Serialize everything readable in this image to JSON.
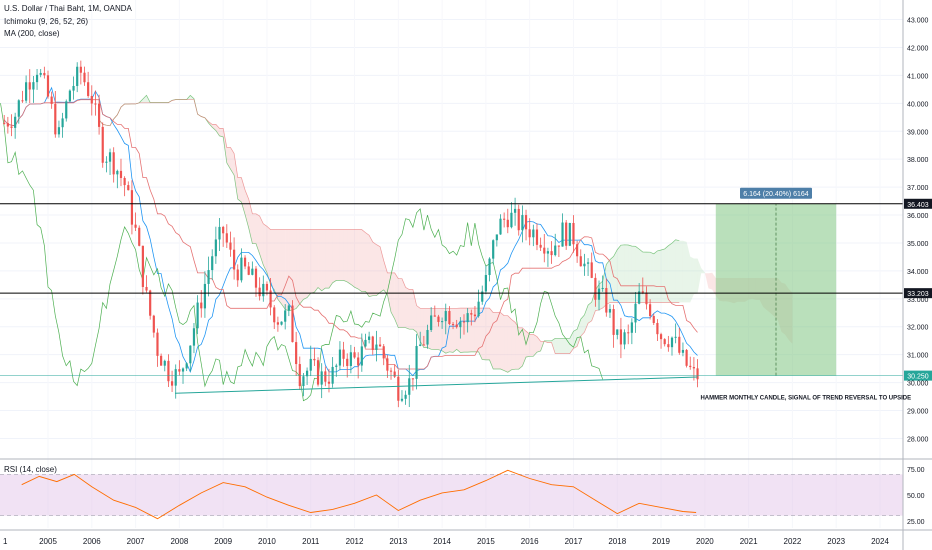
{
  "legend": {
    "title": "U.S. Dollar / Thai Baht, 1M, OANDA",
    "indicator1": "Ichimoku (9, 26, 52, 26)",
    "indicator2": "MA (200, close)",
    "rsi": "RSI (14, close)"
  },
  "annotations": {
    "measure_label": "6.164 (20.40%) 6164",
    "note": "HAMMER MONTHLY CANDLE, SIGNAL OF TREND REVERSAL TO UPSIDE"
  },
  "colors": {
    "up": "#26a69a",
    "down": "#ef5350",
    "tenkan": "#2196f3",
    "kijun": "#e57373",
    "chikou": "#4caf50",
    "cloud_bull": "#a5d6a7",
    "cloud_bear": "#ef9a9a",
    "rsi_line": "#ff6d00",
    "rsi_band": "#e1bee7",
    "measure": "#81c784",
    "support": "#26a69a",
    "level_line": "#000000"
  },
  "chart_data": [
    {
      "type": "candlestick",
      "title": "U.S. Dollar / Thai Baht, 1M, OANDA",
      "x_ticks": [
        "2005",
        "2006",
        "2007",
        "2008",
        "2009",
        "2010",
        "2011",
        "2012",
        "2013",
        "2014",
        "2015",
        "2016",
        "2017",
        "2018",
        "2019",
        "2020",
        "2021",
        "2022",
        "2023",
        "2024"
      ],
      "x_first_label": "1",
      "y_ticks": [
        "43.000",
        "42.000",
        "41.000",
        "40.000",
        "39.000",
        "38.000",
        "37.000",
        "36.000",
        "35.000",
        "34.000",
        "33.000",
        "32.000",
        "31.000",
        "30.000",
        "29.000",
        "28.000"
      ],
      "ylim": [
        27.3,
        43.7
      ],
      "price_labels": [
        {
          "text": "36.403",
          "value": 36.403
        },
        {
          "text": "33.203",
          "value": 33.203
        },
        {
          "text": "30.250",
          "value": 30.25
        }
      ],
      "horizontal_levels": [
        36.403,
        33.203
      ],
      "support_line": {
        "from": [
          2007.9,
          29.62
        ],
        "to": [
          2019.83,
          30.2
        ]
      },
      "series_close": [
        [
          2004.0,
          39.3
        ],
        [
          2004.25,
          39.6
        ],
        [
          2004.5,
          40.7
        ],
        [
          2004.75,
          41.3
        ],
        [
          2005.0,
          40.2
        ],
        [
          2005.25,
          38.8
        ],
        [
          2005.5,
          40.5
        ],
        [
          2005.75,
          41.1
        ],
        [
          2006.0,
          40.2
        ],
        [
          2006.25,
          38.3
        ],
        [
          2006.5,
          37.9
        ],
        [
          2006.75,
          37.1
        ],
        [
          2007.0,
          35.4
        ],
        [
          2007.25,
          33.0
        ],
        [
          2007.5,
          31.2
        ],
        [
          2007.75,
          30.4
        ],
        [
          2008.0,
          30.2
        ],
        [
          2008.25,
          31.5
        ],
        [
          2008.5,
          33.0
        ],
        [
          2008.75,
          34.6
        ],
        [
          2009.0,
          35.4
        ],
        [
          2009.25,
          34.1
        ],
        [
          2009.5,
          34.0
        ],
        [
          2009.75,
          33.5
        ],
        [
          2010.0,
          33.0
        ],
        [
          2010.25,
          32.3
        ],
        [
          2010.5,
          32.4
        ],
        [
          2010.75,
          30.3
        ],
        [
          2011.0,
          30.5
        ],
        [
          2011.25,
          30.2
        ],
        [
          2011.5,
          30.3
        ],
        [
          2011.75,
          31.0
        ],
        [
          2012.0,
          30.8
        ],
        [
          2012.25,
          31.2
        ],
        [
          2012.5,
          31.5
        ],
        [
          2012.75,
          30.6
        ],
        [
          2013.0,
          29.8
        ],
        [
          2013.25,
          30.0
        ],
        [
          2013.5,
          31.3
        ],
        [
          2013.75,
          32.0
        ],
        [
          2014.0,
          32.6
        ],
        [
          2014.25,
          32.4
        ],
        [
          2014.5,
          32.2
        ],
        [
          2014.75,
          32.6
        ],
        [
          2015.0,
          33.6
        ],
        [
          2015.25,
          35.5
        ],
        [
          2015.5,
          36.0
        ],
        [
          2015.75,
          35.7
        ],
        [
          2016.0,
          35.5
        ],
        [
          2016.25,
          35.2
        ],
        [
          2016.5,
          34.8
        ],
        [
          2016.75,
          35.4
        ],
        [
          2017.0,
          35.2
        ],
        [
          2017.25,
          34.2
        ],
        [
          2017.5,
          33.3
        ],
        [
          2017.75,
          32.8
        ],
        [
          2018.0,
          31.5
        ],
        [
          2018.25,
          31.6
        ],
        [
          2018.5,
          33.1
        ],
        [
          2018.75,
          32.7
        ],
        [
          2019.0,
          31.7
        ],
        [
          2019.25,
          31.6
        ],
        [
          2019.5,
          30.8
        ],
        [
          2019.75,
          30.25
        ]
      ]
    },
    {
      "type": "line",
      "title": "RSI (14, close)",
      "y_ticks": [
        "75.00",
        "50.00",
        "25.00"
      ],
      "ylim": [
        18,
        82
      ],
      "bands": [
        30,
        70
      ],
      "series": [
        {
          "values": [
            [
              2004.4,
              60
            ],
            [
              2004.8,
              68
            ],
            [
              2005.2,
              63
            ],
            [
              2005.6,
              70
            ],
            [
              2006.0,
              58
            ],
            [
              2006.5,
              45
            ],
            [
              2007.0,
              38
            ],
            [
              2007.5,
              27
            ],
            [
              2008.0,
              40
            ],
            [
              2008.5,
              52
            ],
            [
              2009.0,
              62
            ],
            [
              2009.5,
              58
            ],
            [
              2010.0,
              48
            ],
            [
              2010.5,
              40
            ],
            [
              2011.0,
              33
            ],
            [
              2011.5,
              36
            ],
            [
              2012.0,
              42
            ],
            [
              2012.5,
              50
            ],
            [
              2013.0,
              35
            ],
            [
              2013.5,
              45
            ],
            [
              2014.0,
              52
            ],
            [
              2014.5,
              55
            ],
            [
              2015.0,
              64
            ],
            [
              2015.5,
              74
            ],
            [
              2016.0,
              66
            ],
            [
              2016.5,
              60
            ],
            [
              2017.0,
              58
            ],
            [
              2017.5,
              45
            ],
            [
              2018.0,
              32
            ],
            [
              2018.5,
              42
            ],
            [
              2019.0,
              38
            ],
            [
              2019.5,
              34
            ],
            [
              2019.8,
              33
            ]
          ]
        }
      ]
    }
  ]
}
